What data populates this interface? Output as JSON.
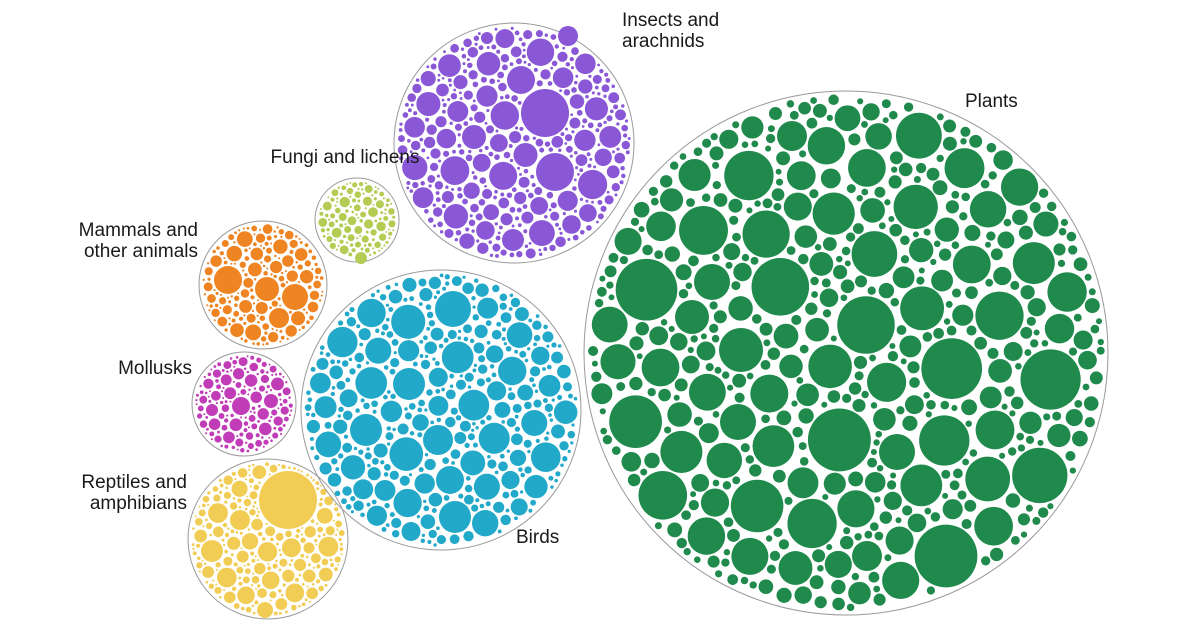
{
  "chart_data": {
    "type": "packed-bubble",
    "groups": [
      {
        "key": "insects",
        "label_lines": [
          "Insects and",
          "arachnids"
        ],
        "color": "#8a57d6"
      },
      {
        "key": "fungi",
        "label_lines": [
          "Fungi and lichens"
        ],
        "color": "#b5cc54"
      },
      {
        "key": "mammals",
        "label_lines": [
          "Mammals and",
          "other animals"
        ],
        "color": "#ee8422"
      },
      {
        "key": "mollusks",
        "label_lines": [
          "Mollusks"
        ],
        "color": "#c13db8"
      },
      {
        "key": "reptiles",
        "label_lines": [
          "Reptiles and",
          "amphibians"
        ],
        "color": "#f2cd55"
      },
      {
        "key": "birds",
        "label_lines": [
          "Birds"
        ],
        "color": "#22a9c9"
      },
      {
        "key": "plants",
        "label_lines": [
          "Plants"
        ],
        "color": "#1f8a4c"
      }
    ]
  }
}
